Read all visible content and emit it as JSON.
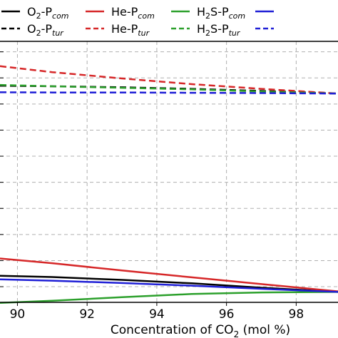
{
  "chart_data": {
    "type": "line",
    "xlabel": "Concentration of CO",
    "xlabel_sub": "2",
    "xlabel_suffix": " (mol %)",
    "xlim": [
      89.5,
      99.2
    ],
    "ylim": [
      0,
      10
    ],
    "x_ticks": [
      90,
      92,
      94,
      96,
      98
    ],
    "y_grid": [
      0.6,
      1.6,
      2.6,
      3.6,
      4.6,
      5.6,
      6.6,
      7.6,
      8.6,
      9.6
    ],
    "grid": true,
    "legend_position": "top",
    "series": [
      {
        "name": "O2-Pcom",
        "legend": {
          "pre": "O",
          "sub": "2",
          "mid": "-P",
          "subit": "com"
        },
        "color": "#000000",
        "dash": "solid",
        "x": [
          89.5,
          91,
          93,
          95,
          97,
          99.2
        ],
        "y": [
          1.02,
          0.97,
          0.86,
          0.73,
          0.56,
          0.4
        ]
      },
      {
        "name": "O2-Ptur",
        "legend": {
          "pre": "O",
          "sub": "2",
          "mid": "-P",
          "subit": "tur"
        },
        "color": "#000000",
        "dash": "dashed",
        "x": [
          89.5,
          91,
          93,
          95,
          97,
          99.2
        ],
        "y": [
          8.3,
          8.28,
          8.24,
          8.18,
          8.1,
          8.0
        ]
      },
      {
        "name": "He-Pcom",
        "legend": {
          "pre": "He",
          "sub": "",
          "mid": "-P",
          "subit": "com"
        },
        "color": "#d62728",
        "dash": "solid",
        "x": [
          89.5,
          91,
          93,
          95,
          97,
          99.2
        ],
        "y": [
          1.68,
          1.5,
          1.22,
          0.96,
          0.7,
          0.42
        ]
      },
      {
        "name": "He-Ptur",
        "legend": {
          "pre": "He",
          "sub": "",
          "mid": "-P",
          "subit": "tur"
        },
        "color": "#d62728",
        "dash": "dashed",
        "x": [
          89.5,
          91,
          93,
          95,
          97,
          99.2
        ],
        "y": [
          9.05,
          8.82,
          8.58,
          8.36,
          8.18,
          8.0
        ]
      },
      {
        "name": "H2S-Pcom",
        "legend": {
          "pre": "H",
          "sub": "2",
          "mid": "S-P",
          "subit": "com"
        },
        "color": "#2ca02c",
        "dash": "solid",
        "x": [
          89.5,
          91,
          93,
          95,
          97,
          99.2
        ],
        "y": [
          -0.02,
          0.06,
          0.2,
          0.32,
          0.38,
          0.4
        ]
      },
      {
        "name": "H2S-Ptur",
        "legend": {
          "pre": "H",
          "sub": "2",
          "mid": "S-P",
          "subit": "tur"
        },
        "color": "#2ca02c",
        "dash": "dashed",
        "x": [
          89.5,
          91,
          93,
          95,
          97,
          99.2
        ],
        "y": [
          8.33,
          8.28,
          8.22,
          8.16,
          8.08,
          8.0
        ]
      },
      {
        "name": "series-blue-com",
        "legend": null,
        "color": "#1f1fd6",
        "dash": "solid",
        "x": [
          89.5,
          91,
          93,
          95,
          97,
          99.2
        ],
        "y": [
          0.88,
          0.83,
          0.74,
          0.64,
          0.52,
          0.4
        ]
      },
      {
        "name": "series-blue-tur",
        "legend": null,
        "color": "#1f1fd6",
        "dash": "dashed",
        "x": [
          89.5,
          91,
          93,
          95,
          97,
          99.2
        ],
        "y": [
          8.05,
          8.04,
          8.04,
          8.03,
          8.02,
          8.0
        ]
      }
    ]
  }
}
